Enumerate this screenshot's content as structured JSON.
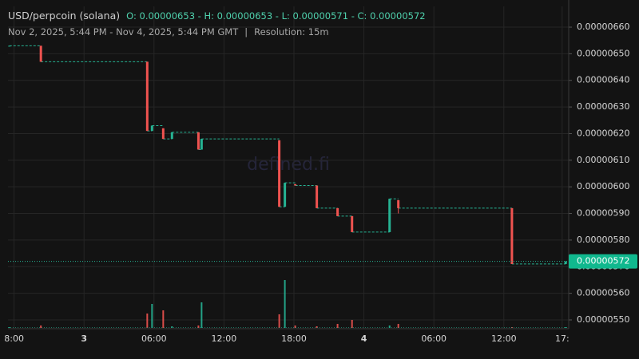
{
  "chart_data": {
    "type": "candlestick",
    "title": "USD/perpcoin (solana)",
    "ohlc_summary": "O: 0.00000653 - H: 0.00000653 - L: 0.00000571 - C: 0.00000572",
    "date_range": "Nov 2, 2025, 5:44 PM - Nov 4, 2025, 5:44 PM GMT",
    "separator": "|",
    "resolution": "Resolution: 15m",
    "watermark": "defined.fi",
    "up_color": "#26b393",
    "down_color": "#ef5350",
    "grid": true,
    "xlim": [
      17.48,
      65.56
    ],
    "xticks": [
      {
        "value": 18,
        "label": "8:00"
      },
      {
        "value": 24,
        "label": "3"
      },
      {
        "value": 30,
        "label": "06:00"
      },
      {
        "value": 36,
        "label": "12:00"
      },
      {
        "value": 42,
        "label": "18:00"
      },
      {
        "value": 48,
        "label": "4"
      },
      {
        "value": 54,
        "label": "06:00"
      },
      {
        "value": 60,
        "label": "12:00"
      },
      {
        "value": 65,
        "label": "17:"
      }
    ],
    "ylim": [
      5.467e-06,
      6.678e-06
    ],
    "yticks": [
      {
        "value": 5.5e-06,
        "label": "0.00000550"
      },
      {
        "value": 5.6e-06,
        "label": "0.00000560"
      },
      {
        "value": 5.7e-06,
        "label": "0.00000570"
      },
      {
        "value": 5.8e-06,
        "label": "0.00000580"
      },
      {
        "value": 5.9e-06,
        "label": "0.00000590"
      },
      {
        "value": 6e-06,
        "label": "0.00000600"
      },
      {
        "value": 6.1e-06,
        "label": "0.00000610"
      },
      {
        "value": 6.2e-06,
        "label": "0.00000620"
      },
      {
        "value": 6.3e-06,
        "label": "0.00000630"
      },
      {
        "value": 6.4e-06,
        "label": "0.00000640"
      },
      {
        "value": 6.5e-06,
        "label": "0.00000650"
      },
      {
        "value": 6.6e-06,
        "label": "0.00000660"
      }
    ],
    "last_price": {
      "value": 5.72e-06,
      "label": "0.00000572"
    },
    "candles": {
      "x": [
        17.6,
        20.3,
        29.42,
        29.83,
        30.79,
        31.54,
        33.81,
        34.08,
        40.74,
        41.22,
        42.11,
        43.96,
        45.74,
        46.98,
        50.2,
        50.95,
        60.69,
        65.3
      ],
      "open": [
        6.53e-06,
        6.53e-06,
        6.47e-06,
        6.21e-06,
        6.22e-06,
        6.18e-06,
        6.205e-06,
        6.14e-06,
        6.175e-06,
        5.925e-06,
        6.01e-06,
        6.005e-06,
        5.92e-06,
        5.89e-06,
        5.83e-06,
        5.95e-06,
        5.92e-06,
        5.71e-06
      ],
      "high": [
        6.53e-06,
        6.53e-06,
        6.47e-06,
        6.23e-06,
        6.22e-06,
        6.205e-06,
        6.205e-06,
        6.18e-06,
        6.175e-06,
        6.015e-06,
        6.01e-06,
        6.005e-06,
        5.92e-06,
        5.89e-06,
        5.955e-06,
        5.95e-06,
        5.92e-06,
        5.72e-06
      ],
      "low": [
        6.53e-06,
        6.47e-06,
        6.21e-06,
        6.21e-06,
        6.18e-06,
        6.18e-06,
        6.14e-06,
        6.14e-06,
        5.925e-06,
        5.925e-06,
        6.005e-06,
        5.92e-06,
        5.89e-06,
        5.83e-06,
        5.83e-06,
        5.9e-06,
        5.71e-06,
        5.71e-06
      ],
      "close": [
        6.53e-06,
        6.47e-06,
        6.21e-06,
        6.23e-06,
        6.18e-06,
        6.205e-06,
        6.14e-06,
        6.18e-06,
        5.925e-06,
        6.015e-06,
        6.005e-06,
        5.92e-06,
        5.89e-06,
        5.83e-06,
        5.955e-06,
        5.92e-06,
        5.71e-06,
        5.72e-06
      ],
      "volume": [
        1,
        3,
        18,
        30,
        22,
        2,
        3,
        32,
        17,
        60,
        3,
        2,
        5,
        10,
        3,
        5,
        1,
        1
      ]
    }
  }
}
